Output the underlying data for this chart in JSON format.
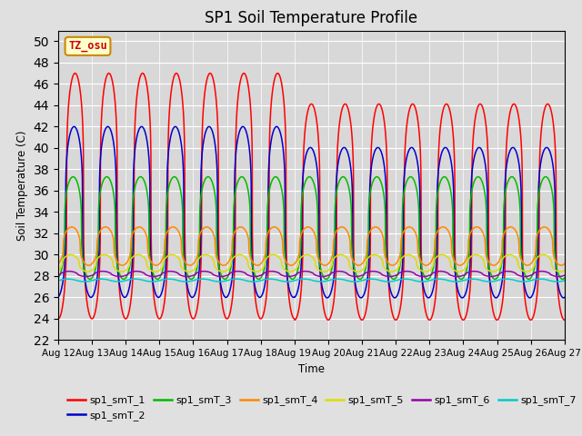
{
  "title": "SP1 Soil Temperature Profile",
  "xlabel": "Time",
  "ylabel": "Soil Temperature (C)",
  "ylim": [
    22,
    51
  ],
  "yticks": [
    22,
    24,
    26,
    28,
    30,
    32,
    34,
    36,
    38,
    40,
    42,
    44,
    46,
    48,
    50
  ],
  "background_color": "#e0e0e0",
  "plot_bg_color": "#d8d8d8",
  "grid_color": "#ffffff",
  "tz_label": "TZ_osu",
  "tz_bg": "#ffffcc",
  "tz_border": "#cc8800",
  "tz_text_color": "#cc0000",
  "series_colors": {
    "sp1_smT_1": "#ff0000",
    "sp1_smT_2": "#0000cc",
    "sp1_smT_3": "#00bb00",
    "sp1_smT_4": "#ff8800",
    "sp1_smT_5": "#dddd00",
    "sp1_smT_6": "#9900aa",
    "sp1_smT_7": "#00cccc"
  },
  "n_days": 15,
  "start_day": 12,
  "configs": {
    "sp1_smT_1": {
      "mean": 35.5,
      "amp": 11.5,
      "phase": 0.0,
      "sharpness": 3.5
    },
    "sp1_smT_2": {
      "mean": 34.0,
      "amp": 8.0,
      "phase": 0.03,
      "sharpness": 3.5
    },
    "sp1_smT_3": {
      "mean": 32.5,
      "amp": 4.8,
      "phase": 0.06,
      "sharpness": 3.0
    },
    "sp1_smT_4": {
      "mean": 30.8,
      "amp": 1.8,
      "phase": 0.1,
      "sharpness": 2.5
    },
    "sp1_smT_5": {
      "mean": 29.2,
      "amp": 0.8,
      "phase": 0.13,
      "sharpness": 2.0
    },
    "sp1_smT_6": {
      "mean": 28.2,
      "amp": 0.25,
      "phase": 0.18,
      "sharpness": 1.5
    },
    "sp1_smT_7": {
      "mean": 27.6,
      "amp": 0.12,
      "phase": 0.22,
      "sharpness": 1.2
    }
  },
  "amplitude_reduction": {
    "sp1_smT_1": {
      "after_day": 7,
      "factor": 0.88,
      "mean_shift": -1.5
    },
    "sp1_smT_2": {
      "after_day": 7,
      "factor": 0.88,
      "mean_shift": -1.0
    }
  }
}
